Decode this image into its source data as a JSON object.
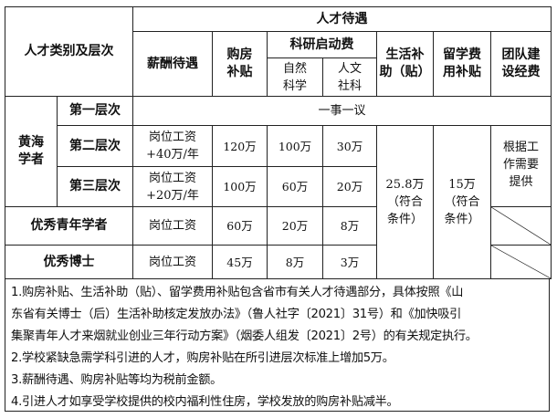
{
  "header": {
    "category": "人才类别及层次",
    "benefits": "人才待遇",
    "salary": "薪酬待遇",
    "housing": [
      "购房",
      "补贴"
    ],
    "research": "科研启动费",
    "natural": [
      "自然",
      "科学"
    ],
    "humanities": [
      "人文",
      "社科"
    ],
    "living": [
      "生活补",
      "助（贴）"
    ],
    "study_abroad": [
      "留学费",
      "用补贴"
    ],
    "team": [
      "团队建",
      "设经费"
    ]
  },
  "rows": {
    "huanghai": [
      "黄海",
      "学者"
    ],
    "level1": {
      "label": "第一层次",
      "value": "一事一议"
    },
    "level2": {
      "label": "第二层次",
      "salary": [
        "岗位工资",
        "+40万/年"
      ],
      "housing": "120万",
      "natural": "100万",
      "humanities": "30万"
    },
    "level3": {
      "label": "第三层次",
      "salary": [
        "岗位工资",
        "+20万/年"
      ],
      "housing": "100万",
      "natural": "60万",
      "humanities": "20万"
    },
    "young": {
      "label": "优秀青年学者",
      "salary": "岗位工资",
      "housing": "60万",
      "natural": "20万",
      "humanities": "8万"
    },
    "phd": {
      "label": "优秀博士",
      "salary": "岗位工资",
      "housing": "45万",
      "natural": "8万",
      "humanities": "3万"
    },
    "living_value": [
      "25.8万",
      "（符合",
      "条件）"
    ],
    "abroad_value": [
      "15万",
      "（符合",
      "条件）"
    ],
    "team_value": [
      "根据工",
      "作需要",
      "提供"
    ]
  },
  "notes": [
    "1.购房补贴、生活补助（贴）、留学费用补贴包含省市有关人才待遇部分，具体按照《山",
    "东省有关博士（后）生活补助核定发放办法》（鲁人社字〔2021〕31号）和《加快吸引",
    "集聚青年人才来烟就业创业三年行动方案》（烟委人组发〔2021〕2号）的有关规定执行。",
    "2.学校紧缺急需学科引进的人才，购房补贴在所引进层次标准上增加5万。",
    "3.薪酬待遇、购房补贴等均为税前金额。",
    "4.引进人才如享受学校提供的校内福利性住房，学校发放的购房补贴减半。"
  ]
}
